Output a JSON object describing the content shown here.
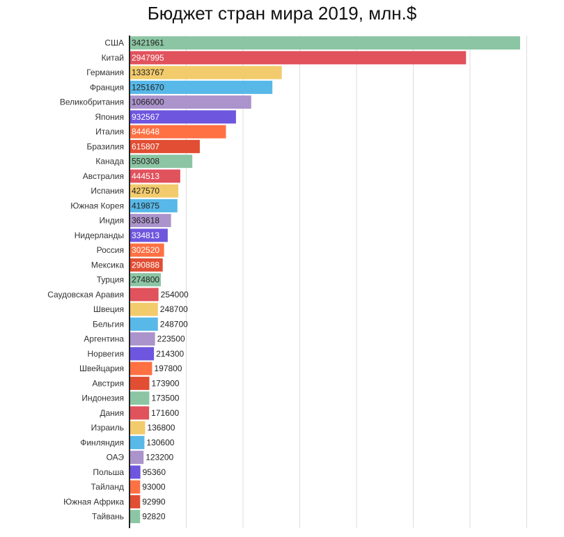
{
  "chart_data": {
    "type": "bar",
    "orientation": "horizontal",
    "title": "Бюджет стран мира 2019, млн.$",
    "xlim": [
      0,
      3421961
    ],
    "grid": true,
    "categories": [
      "США",
      "Китай",
      "Германия",
      "Франция",
      "Великобритания",
      "Япония",
      "Италия",
      "Бразилия",
      "Канада",
      "Австралия",
      "Испания",
      "Южная Корея",
      "Индия",
      "Нидерланды",
      "Россия",
      "Мексика",
      "Турция",
      "Саудовская Аравия",
      "Швеция",
      "Бельгия",
      "Аргентина",
      "Норвегия",
      "Швейцария",
      "Австрия",
      "Индонезия",
      "Дания",
      "Израиль",
      "Финляндия",
      "ОАЭ",
      "Польша",
      "Тайланд",
      "Южная Африка",
      "Тайвань"
    ],
    "values": [
      3421961,
      2947995,
      1333767,
      1251670,
      1066000,
      932567,
      844648,
      615807,
      550308,
      444513,
      427570,
      419875,
      363618,
      334813,
      302520,
      290888,
      274800,
      254000,
      248700,
      248700,
      223500,
      214300,
      197800,
      173900,
      173500,
      171600,
      136800,
      130600,
      123200,
      95360,
      93000,
      92990,
      92820
    ],
    "value_labels": [
      "3421961",
      "2947995",
      "1333767",
      "1251670",
      "1066000",
      "932567",
      "844648",
      "615807",
      "550308",
      "444513",
      "427570",
      "419875",
      "363618",
      "334813",
      "302520",
      "290888",
      "274800",
      "254000",
      "248700",
      "248700",
      "223500",
      "214300",
      "197800",
      "173900",
      "173500",
      "171600",
      "136800",
      "130600",
      "123200",
      "95360",
      "93000",
      "92990",
      "92820"
    ],
    "colors": [
      "#8cc5a3",
      "#e0525c",
      "#f2cb6c",
      "#58b8e8",
      "#ab93cb",
      "#6e56de",
      "#ff7043",
      "#e14e33",
      "#8cc5a3",
      "#e0525c",
      "#f2cb6c",
      "#58b8e8",
      "#ab93cb",
      "#6e56de",
      "#ff7043",
      "#e14e33",
      "#8cc5a3",
      "#e0525c",
      "#f2cb6c",
      "#58b8e8",
      "#ab93cb",
      "#6e56de",
      "#ff7043",
      "#e14e33",
      "#8cc5a3",
      "#e0525c",
      "#f2cb6c",
      "#58b8e8",
      "#ab93cb",
      "#6e56de",
      "#ff7043",
      "#e14e33",
      "#8cc5a3"
    ],
    "dark_label_colors": [
      "#8cc5a3",
      "#f2cb6c",
      "#58b8e8",
      "#ab93cb"
    ],
    "grid_color": "#dddddd",
    "axis_color": "#222222"
  }
}
